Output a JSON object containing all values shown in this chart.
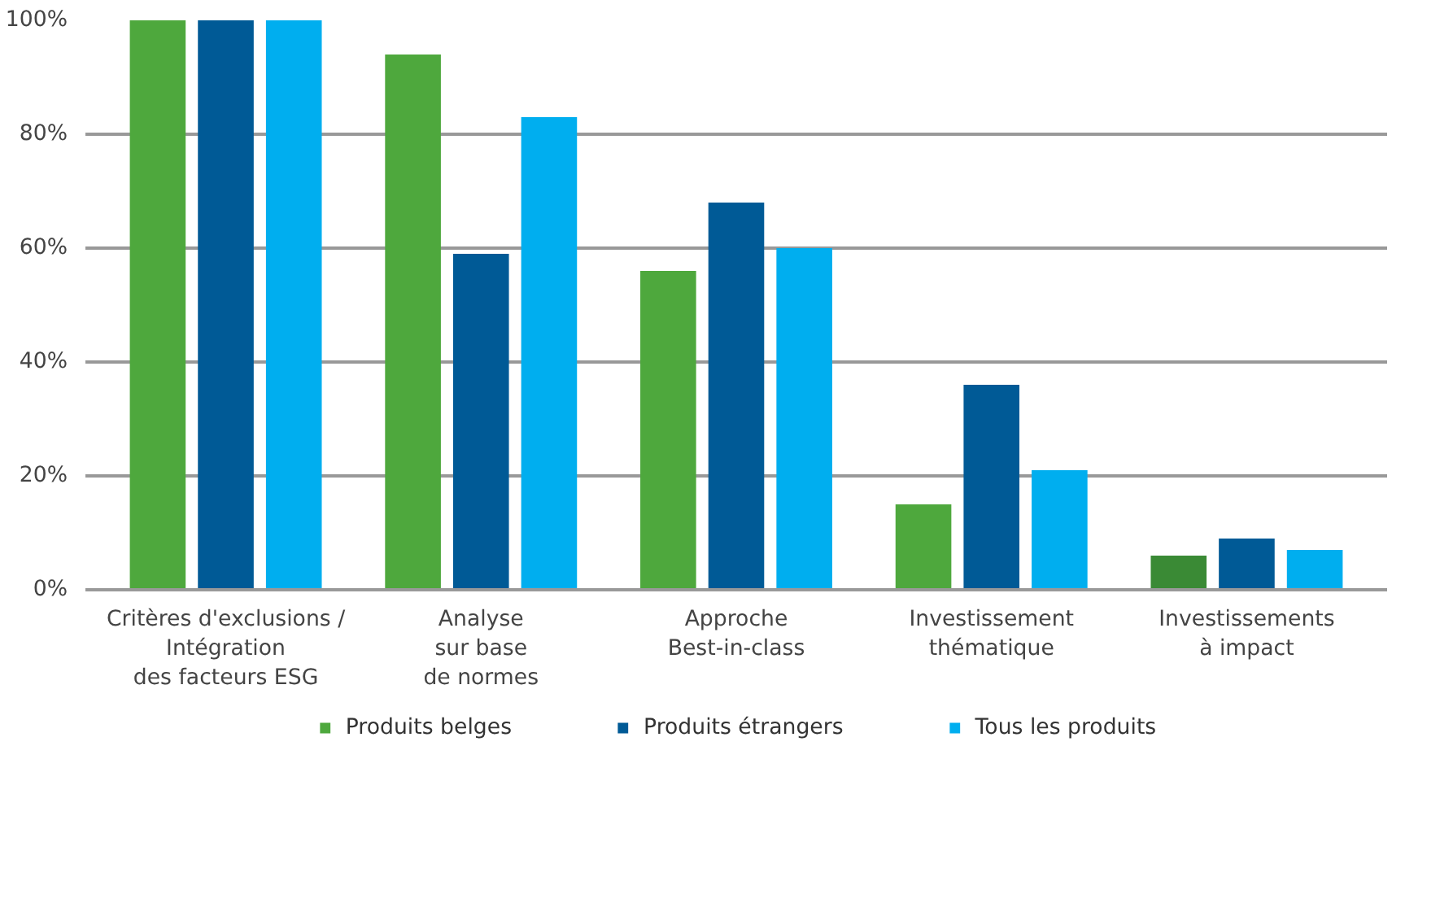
{
  "chart_data": {
    "type": "bar",
    "categories": [
      "Critères d'exclusions /\nIntégration\ndes facteurs ESG",
      "Analyse\nsur base\nde normes",
      "Approche\nBest-in-class",
      "Investissement\nthématique",
      "Investissements\nà impact"
    ],
    "series": [
      {
        "name": "Produits belges",
        "color": "#4ea83d",
        "colors": [
          "#4ea83d",
          "#4ea83d",
          "#4ea83d",
          "#4ea83d",
          "#3a8a35"
        ],
        "values": [
          100,
          94,
          56,
          15,
          6
        ]
      },
      {
        "name": "Produits étrangers",
        "color": "#005a96",
        "values": [
          100,
          59,
          68,
          36,
          9
        ]
      },
      {
        "name": "Tous les produits",
        "color": "#00aeef",
        "values": [
          100,
          83,
          60,
          21,
          7
        ]
      }
    ],
    "ylim": [
      0,
      100
    ],
    "yticks": [
      {
        "value": 0,
        "label": "0%"
      },
      {
        "value": 20,
        "label": "20%"
      },
      {
        "value": 40,
        "label": "40%"
      },
      {
        "value": 60,
        "label": "60%"
      },
      {
        "value": 80,
        "label": "80%"
      },
      {
        "value": 100,
        "label": "100%"
      }
    ],
    "grid": "y",
    "legend": "bottom"
  }
}
